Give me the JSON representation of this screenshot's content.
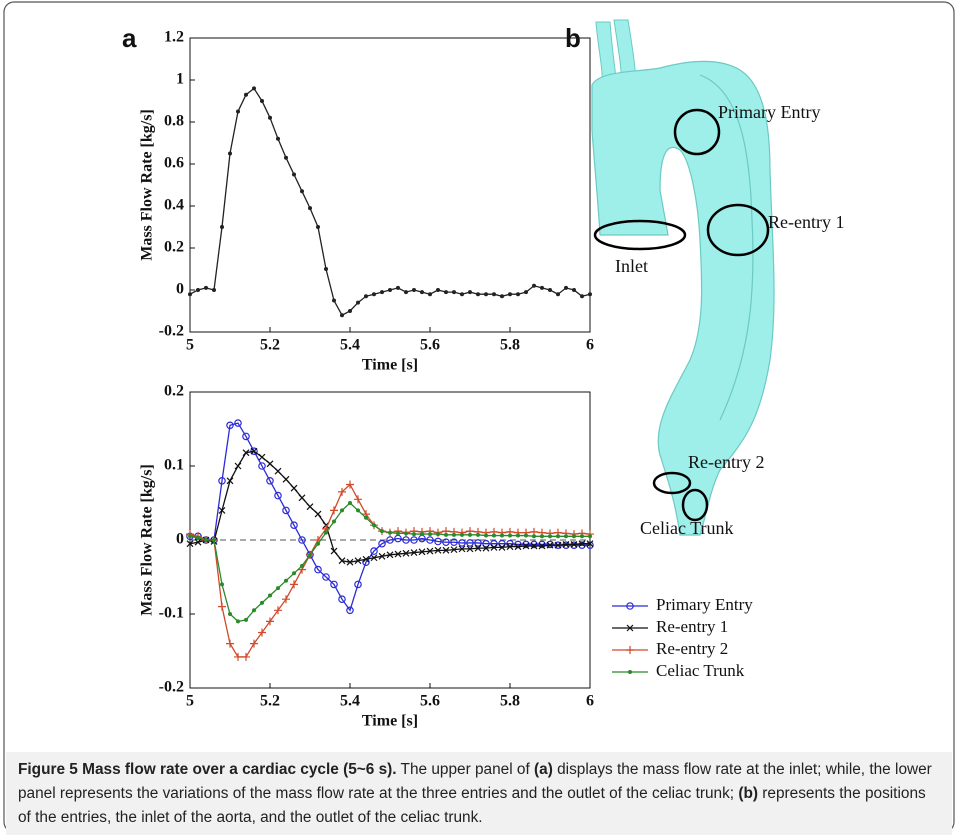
{
  "panel_labels": [
    "a",
    "b"
  ],
  "chart_data": [
    {
      "type": "line",
      "xlabel": "Time [s]",
      "ylabel": "Mass Flow Rate [kg/s]",
      "xlim": [
        5,
        6
      ],
      "xticks": [
        5,
        5.2,
        5.4,
        5.6,
        5.8,
        6
      ],
      "ylim": [
        -0.2,
        1.2
      ],
      "yticks": [
        -0.2,
        0,
        0.2,
        0.4,
        0.6,
        0.8,
        1,
        1.2
      ],
      "color": "#222222",
      "marker": ".",
      "x": [
        5,
        5.02,
        5.04,
        5.06,
        5.08,
        5.1,
        5.12,
        5.14,
        5.16,
        5.18,
        5.2,
        5.22,
        5.24,
        5.26,
        5.28,
        5.3,
        5.32,
        5.34,
        5.36,
        5.38,
        5.4,
        5.42,
        5.44,
        5.46,
        5.48,
        5.5,
        5.52,
        5.54,
        5.56,
        5.58,
        5.6,
        5.62,
        5.64,
        5.66,
        5.68,
        5.7,
        5.72,
        5.74,
        5.76,
        5.78,
        5.8,
        5.82,
        5.84,
        5.86,
        5.88,
        5.9,
        5.92,
        5.94,
        5.96,
        5.98,
        6
      ],
      "values": [
        -0.02,
        0,
        0.01,
        0,
        0.3,
        0.65,
        0.85,
        0.93,
        0.96,
        0.9,
        0.82,
        0.72,
        0.63,
        0.55,
        0.47,
        0.39,
        0.3,
        0.1,
        -0.05,
        -0.12,
        -0.1,
        -0.06,
        -0.03,
        -0.02,
        -0.01,
        0,
        0.01,
        -0.01,
        0,
        -0.01,
        -0.02,
        0,
        -0.01,
        -0.01,
        -0.02,
        -0.01,
        -0.02,
        -0.02,
        -0.02,
        -0.03,
        -0.02,
        -0.02,
        -0.01,
        0.02,
        0.01,
        0,
        -0.02,
        0.01,
        0,
        -0.03,
        -0.02
      ]
    },
    {
      "type": "line",
      "xlabel": "Time [s]",
      "ylabel": "Mass Flow Rate [kg/s]",
      "xlim": [
        5,
        6
      ],
      "xticks": [
        5,
        5.2,
        5.4,
        5.6,
        5.8,
        6
      ],
      "ylim": [
        -0.2,
        0.2
      ],
      "yticks": [
        -0.2,
        -0.1,
        0,
        0.1,
        0.2
      ],
      "zero_line": true,
      "x": [
        5,
        5.02,
        5.04,
        5.06,
        5.08,
        5.1,
        5.12,
        5.14,
        5.16,
        5.18,
        5.2,
        5.22,
        5.24,
        5.26,
        5.28,
        5.3,
        5.32,
        5.34,
        5.36,
        5.38,
        5.4,
        5.42,
        5.44,
        5.46,
        5.48,
        5.5,
        5.52,
        5.54,
        5.56,
        5.58,
        5.6,
        5.62,
        5.64,
        5.66,
        5.68,
        5.7,
        5.72,
        5.74,
        5.76,
        5.78,
        5.8,
        5.82,
        5.84,
        5.86,
        5.88,
        5.9,
        5.92,
        5.94,
        5.96,
        5.98,
        6
      ],
      "series": [
        {
          "name": "Primary Entry",
          "color": "#2b2bd6",
          "marker": "o",
          "values": [
            0.005,
            0.005,
            0,
            0,
            0.08,
            0.155,
            0.158,
            0.14,
            0.12,
            0.1,
            0.08,
            0.06,
            0.04,
            0.02,
            0,
            -0.02,
            -0.04,
            -0.05,
            -0.06,
            -0.08,
            -0.095,
            -0.06,
            -0.03,
            -0.015,
            -0.005,
            0,
            0.002,
            0,
            0,
            0.002,
            0,
            -0.002,
            -0.003,
            -0.003,
            -0.004,
            -0.004,
            -0.004,
            -0.005,
            -0.005,
            -0.005,
            -0.005,
            -0.006,
            -0.006,
            -0.006,
            -0.006,
            -0.006,
            -0.007,
            -0.007,
            -0.007,
            -0.007,
            -0.007
          ]
        },
        {
          "name": "Re-entry 1",
          "color": "#111111",
          "marker": "x",
          "values": [
            -0.005,
            -0.003,
            0,
            -0.002,
            0.04,
            0.08,
            0.1,
            0.118,
            0.12,
            0.112,
            0.103,
            0.093,
            0.082,
            0.07,
            0.057,
            0.045,
            0.035,
            0.02,
            -0.015,
            -0.028,
            -0.03,
            -0.028,
            -0.026,
            -0.024,
            -0.022,
            -0.02,
            -0.019,
            -0.018,
            -0.017,
            -0.016,
            -0.015,
            -0.014,
            -0.014,
            -0.013,
            -0.012,
            -0.012,
            -0.011,
            -0.011,
            -0.01,
            -0.01,
            -0.009,
            -0.009,
            -0.008,
            -0.008,
            -0.008,
            -0.007,
            -0.007,
            -0.006,
            -0.006,
            -0.005,
            -0.005
          ]
        },
        {
          "name": "Re-entry 2",
          "color": "#d04a2a",
          "marker": "+",
          "values": [
            0.008,
            0.005,
            0,
            0,
            -0.09,
            -0.14,
            -0.158,
            -0.158,
            -0.14,
            -0.125,
            -0.11,
            -0.095,
            -0.08,
            -0.06,
            -0.04,
            -0.02,
            0,
            0.015,
            0.04,
            0.065,
            0.075,
            0.055,
            0.035,
            0.02,
            0.012,
            0.01,
            0.012,
            0.01,
            0.012,
            0.011,
            0.012,
            0.01,
            0.012,
            0.011,
            0.01,
            0.012,
            0.011,
            0.01,
            0.011,
            0.01,
            0.011,
            0.01,
            0.01,
            0.011,
            0.01,
            0.009,
            0.01,
            0.009,
            0.008,
            0.009,
            0.008
          ]
        },
        {
          "name": "Celiac Trunk",
          "color": "#2a8a2a",
          "marker": ".",
          "values": [
            0.005,
            0.003,
            0,
            0,
            -0.06,
            -0.1,
            -0.11,
            -0.108,
            -0.095,
            -0.085,
            -0.075,
            -0.065,
            -0.055,
            -0.045,
            -0.035,
            -0.02,
            -0.005,
            0.01,
            0.025,
            0.04,
            0.05,
            0.04,
            0.03,
            0.02,
            0.012,
            0.01,
            0.009,
            0.009,
            0.008,
            0.008,
            0.008,
            0.008,
            0.007,
            0.007,
            0.007,
            0.007,
            0.007,
            0.006,
            0.006,
            0.006,
            0.006,
            0.006,
            0.006,
            0.005,
            0.005,
            0.005,
            0.005,
            0.005,
            0.005,
            0.005,
            0.005
          ]
        }
      ]
    }
  ],
  "figure_b": {
    "annotations": [
      "Primary Entry",
      "Re-entry 1",
      "Inlet",
      "Re-entry 2",
      "Celiac Trunk"
    ]
  },
  "caption": {
    "title": "Figure 5 Mass flow rate over a cardiac cycle (5~6 s).",
    "parts": [
      " The upper panel of ",
      "(a)",
      " displays the mass flow rate at the inlet; while, the lower panel represents the variations of the mass flow rate at the three entries and the outlet of the celiac trunk; ",
      "(b)",
      " represents the positions of the entries, the inlet of the aorta, and the outlet of the celiac trunk."
    ]
  }
}
